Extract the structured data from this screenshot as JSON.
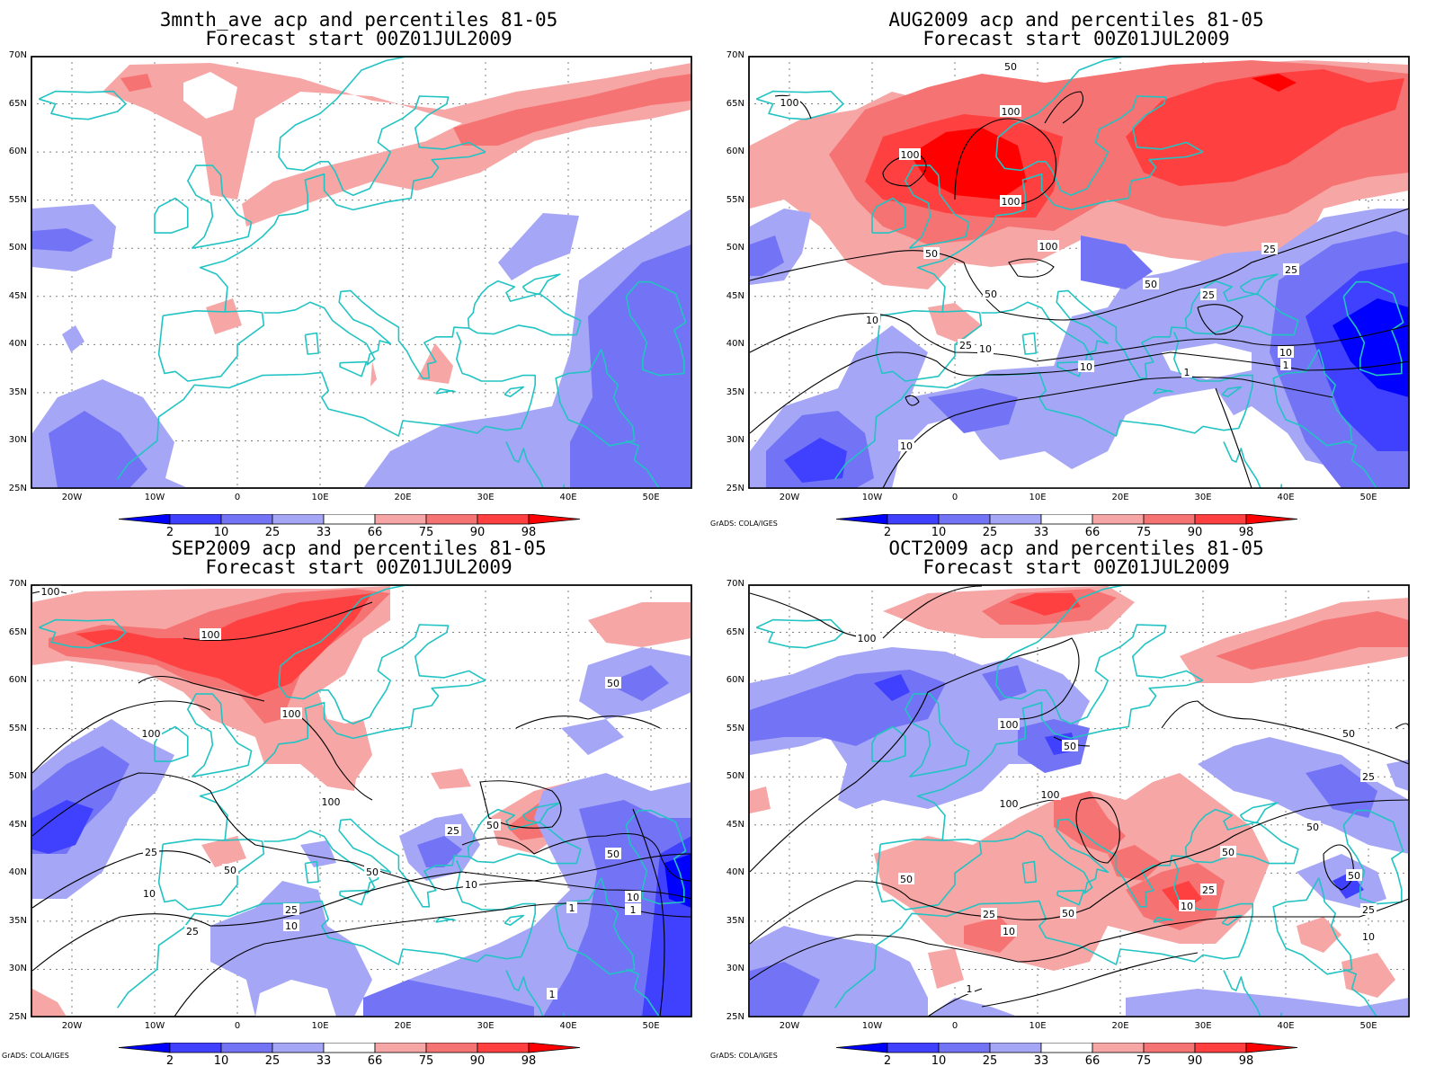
{
  "panels": [
    {
      "title_line1": "3mnth_ave acp and percentiles 81-05",
      "title_line2": "Forecast start 00Z01JUL2009",
      "credit": "",
      "has_contours": false,
      "contour_labels": []
    },
    {
      "title_line1": "AUG2009 acp and percentiles 81-05",
      "title_line2": "Forecast start 00Z01JUL2009",
      "credit": "GrADS: COLA/IGES",
      "has_contours": true,
      "contour_labels": [
        "100",
        "100",
        "100",
        "100",
        "50",
        "50",
        "50",
        "50",
        "25",
        "25",
        "25",
        "25",
        "10",
        "10",
        "10",
        "10",
        "10",
        "1",
        "1",
        "100"
      ]
    },
    {
      "title_line1": "SEP2009 acp and percentiles 81-05",
      "title_line2": "Forecast start 00Z01JUL2009",
      "credit": "GrADS: COLA/IGES",
      "has_contours": true,
      "contour_labels": [
        "100",
        "100",
        "100",
        "100",
        "100",
        "50",
        "50",
        "50",
        "50",
        "50",
        "25",
        "25",
        "25",
        "25",
        "10",
        "10",
        "10",
        "10",
        "1",
        "1",
        "1"
      ]
    },
    {
      "title_line1": "OCT2009 acp and percentiles 81-05",
      "title_line2": "Forecast start 00Z01JUL2009",
      "credit": "GrADS: COLA/IGES",
      "has_contours": true,
      "contour_labels": [
        "100",
        "100",
        "100",
        "100",
        "50",
        "50",
        "50",
        "50",
        "50",
        "50",
        "50",
        "25",
        "25",
        "25",
        "25",
        "10",
        "10",
        "10",
        "1"
      ]
    }
  ],
  "axes": {
    "lat_labels": [
      "70N",
      "65N",
      "60N",
      "55N",
      "50N",
      "45N",
      "40N",
      "35N",
      "30N",
      "25N"
    ],
    "lon_labels": [
      "20W",
      "10W",
      "0",
      "10E",
      "20E",
      "30E",
      "40E",
      "50E"
    ],
    "lon_min": -25,
    "lon_max": 55,
    "lat_min": 25,
    "lat_max": 70
  },
  "colorbar": {
    "labels": [
      "2",
      "10",
      "25",
      "33",
      "66",
      "75",
      "90",
      "98"
    ],
    "colors": [
      "#0000ff",
      "#4040ff",
      "#7373f5",
      "#a6a6f7",
      "#ffffff",
      "#f7a6a6",
      "#f57373",
      "#ff4040",
      "#ff0000"
    ]
  },
  "field_colors": {
    "below_33": "#a6a6f7",
    "below_25": "#7373f5",
    "below_10": "#4040ff",
    "below_2": "#0000ff",
    "above_66": "#f7a6a6",
    "above_75": "#f57373",
    "above_90": "#ff4040",
    "above_98": "#ff0000",
    "coastline": "#22c3c3",
    "contour": "#000000"
  }
}
